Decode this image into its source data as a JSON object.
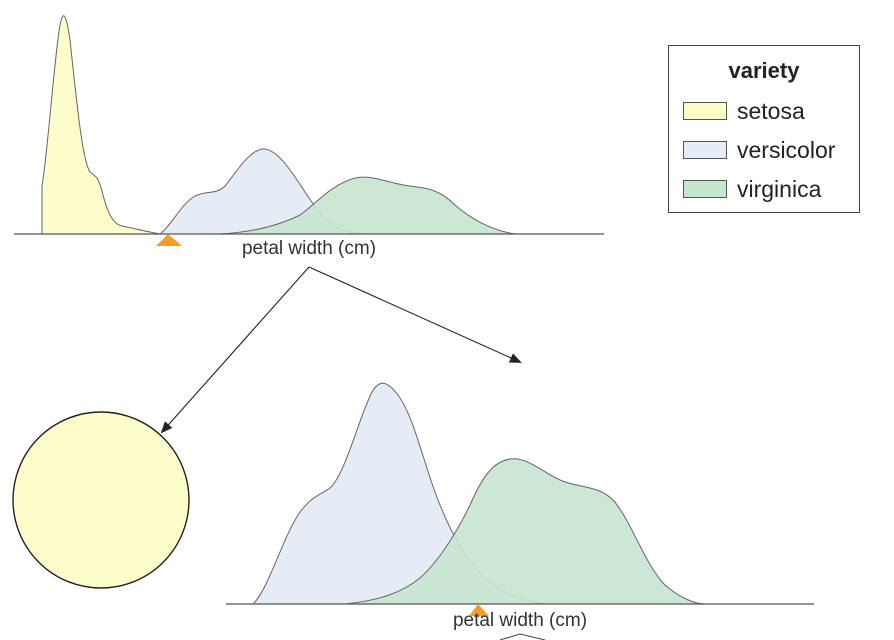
{
  "colors": {
    "setosa": "#fdfccb",
    "versicolor": "#e6ecf6",
    "virginica": "#c6e6d0",
    "stroke": "#666666",
    "marker": "#f79c2b",
    "axis": "#555555",
    "arrow": "#222222"
  },
  "top_plot": {
    "xlabel": "petal width (cm)"
  },
  "bottom_plot": {
    "xlabel": "petal width (cm)"
  },
  "legend": {
    "title": "variety",
    "items": [
      {
        "label": "setosa",
        "color": "#fdfccb"
      },
      {
        "label": "versicolor",
        "color": "#e6ecf6"
      },
      {
        "label": "virginica",
        "color": "#c6e6d0"
      }
    ]
  }
}
